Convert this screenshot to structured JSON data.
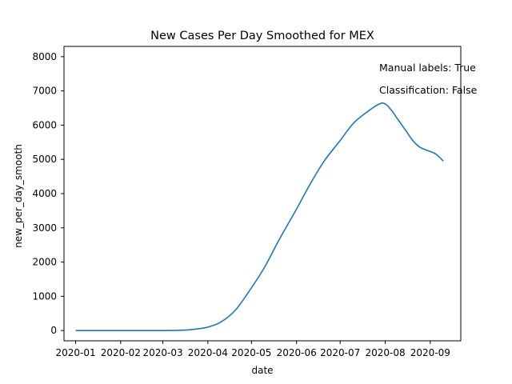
{
  "chart_data": {
    "type": "line",
    "title": "New Cases Per Day Smoothed for MEX",
    "xlabel": "date",
    "ylabel": "new_per_day_smooth",
    "x_ticks": [
      "2020-01",
      "2020-02",
      "2020-03",
      "2020-04",
      "2020-05",
      "2020-06",
      "2020-07",
      "2020-08",
      "2020-09"
    ],
    "y_ticks": [
      0,
      1000,
      2000,
      3000,
      4000,
      5000,
      6000,
      7000,
      8000
    ],
    "ylim": [
      -300,
      8300
    ],
    "xlim": [
      "2019-12-24",
      "2020-09-22"
    ],
    "grid": false,
    "line_color": "#1f77b4",
    "annotations": [
      "Manual labels: True",
      "Classification: False"
    ],
    "series": [
      {
        "x": [
          "2020-01-01",
          "2020-02-01",
          "2020-03-01",
          "2020-03-15",
          "2020-03-25",
          "2020-04-01",
          "2020-04-10",
          "2020-04-20",
          "2020-05-01",
          "2020-05-10",
          "2020-05-20",
          "2020-06-01",
          "2020-06-10",
          "2020-06-20",
          "2020-07-01",
          "2020-07-10",
          "2020-07-20",
          "2020-07-28",
          "2020-08-01",
          "2020-08-05",
          "2020-08-10",
          "2020-08-15",
          "2020-08-20",
          "2020-08-25",
          "2020-09-01",
          "2020-09-05",
          "2020-09-10"
        ],
        "y": [
          0,
          0,
          0,
          10,
          50,
          100,
          250,
          600,
          1250,
          1850,
          2650,
          3550,
          4250,
          4950,
          5550,
          6050,
          6400,
          6620,
          6620,
          6450,
          6150,
          5850,
          5550,
          5350,
          5230,
          5150,
          4950
        ]
      }
    ]
  }
}
